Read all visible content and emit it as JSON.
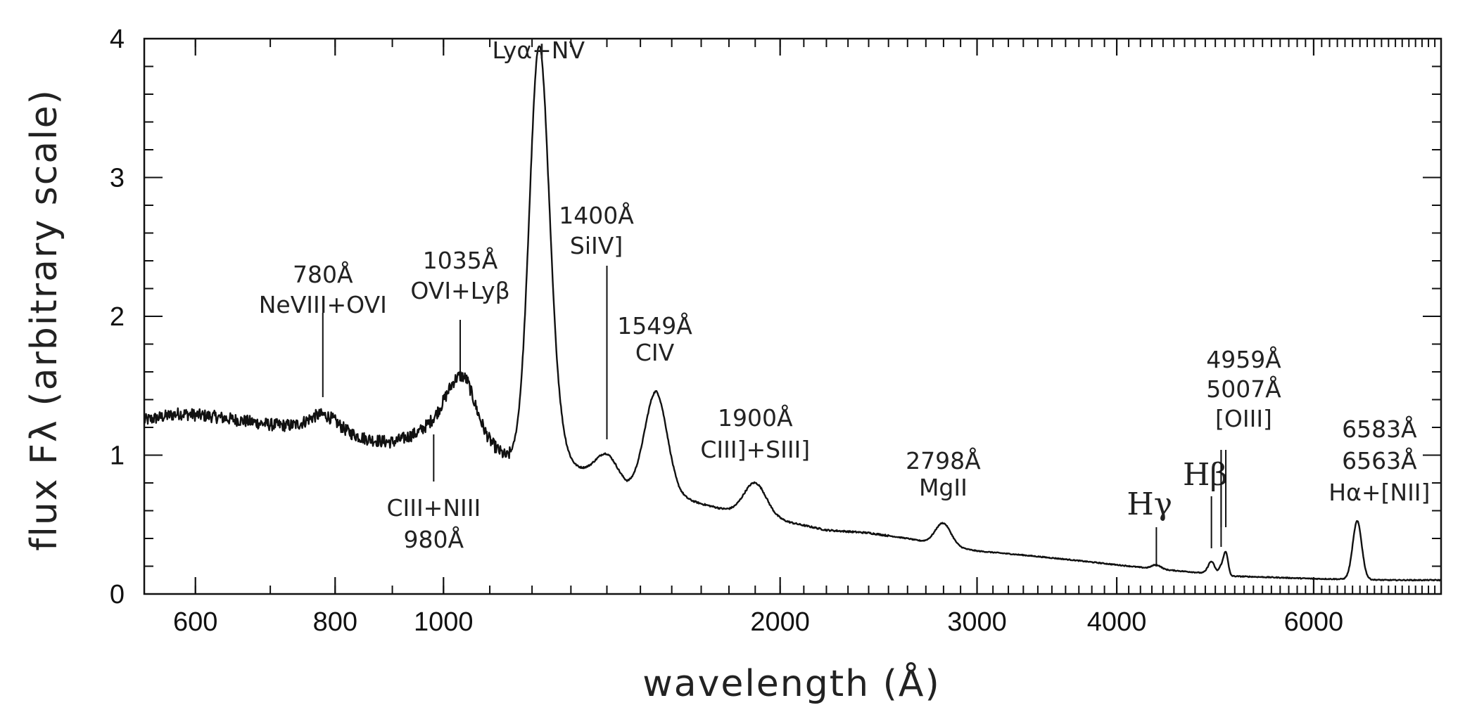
{
  "chart_data": {
    "type": "line",
    "title": "",
    "xlabel": "wavelength (Å)",
    "ylabel": "flux Fλ (arbitrary scale)",
    "x_scale": "log",
    "xlim": [
      540,
      7800
    ],
    "ylim": [
      0,
      4
    ],
    "x_ticks": [
      {
        "value": 600,
        "label": "600"
      },
      {
        "value": 800,
        "label": "800"
      },
      {
        "value": 1000,
        "label": "1000"
      },
      {
        "value": 2000,
        "label": "2000"
      },
      {
        "value": 3000,
        "label": "3000"
      },
      {
        "value": 4000,
        "label": "4000"
      },
      {
        "value": 6000,
        "label": "6000"
      }
    ],
    "y_ticks": [
      {
        "value": 0,
        "label": "0"
      },
      {
        "value": 1,
        "label": "1"
      },
      {
        "value": 2,
        "label": "2"
      },
      {
        "value": 3,
        "label": "3"
      },
      {
        "value": 4,
        "label": "4"
      }
    ],
    "grid": false,
    "series": [
      {
        "color": "#111111",
        "continuum": [
          [
            540,
            1.25
          ],
          [
            580,
            1.3
          ],
          [
            620,
            1.28
          ],
          [
            700,
            1.22
          ],
          [
            760,
            1.2
          ],
          [
            800,
            1.18
          ],
          [
            850,
            1.12
          ],
          [
            900,
            1.08
          ],
          [
            950,
            1.1
          ],
          [
            1000,
            1.18
          ],
          [
            1050,
            1.25
          ],
          [
            1100,
            1.08
          ],
          [
            1140,
            0.98
          ],
          [
            1180,
            1.02
          ],
          [
            1215,
            1.05
          ],
          [
            1260,
            0.95
          ],
          [
            1320,
            0.9
          ],
          [
            1400,
            0.84
          ],
          [
            1460,
            0.76
          ],
          [
            1549,
            0.8
          ],
          [
            1620,
            0.7
          ],
          [
            1700,
            0.65
          ],
          [
            1800,
            0.6
          ],
          [
            1900,
            0.56
          ],
          [
            2000,
            0.53
          ],
          [
            2200,
            0.46
          ],
          [
            2400,
            0.44
          ],
          [
            2600,
            0.4
          ],
          [
            2800,
            0.35
          ],
          [
            3000,
            0.31
          ],
          [
            3300,
            0.28
          ],
          [
            3600,
            0.25
          ],
          [
            4000,
            0.21
          ],
          [
            4340,
            0.18
          ],
          [
            4800,
            0.15
          ],
          [
            5000,
            0.13
          ],
          [
            5500,
            0.12
          ],
          [
            6000,
            0.11
          ],
          [
            6563,
            0.105
          ],
          [
            7000,
            0.1
          ],
          [
            7800,
            0.1
          ]
        ],
        "lines": [
          {
            "center": 780,
            "amp": 0.1,
            "width": 0.012
          },
          {
            "center": 980,
            "amp": 0.08,
            "width": 0.02
          },
          {
            "center": 1035,
            "amp": 0.3,
            "width": 0.012
          },
          {
            "center": 1216,
            "amp": 2.55,
            "width": 0.0085
          },
          {
            "center": 1240,
            "amp": 0.5,
            "width": 0.01
          },
          {
            "center": 1400,
            "amp": 0.17,
            "width": 0.01
          },
          {
            "center": 1549,
            "amp": 0.66,
            "width": 0.01
          },
          {
            "center": 1900,
            "amp": 0.24,
            "width": 0.01
          },
          {
            "center": 2798,
            "amp": 0.16,
            "width": 0.007
          },
          {
            "center": 4340,
            "amp": 0.03,
            "width": 0.004
          },
          {
            "center": 4861,
            "amp": 0.09,
            "width": 0.003
          },
          {
            "center": 4959,
            "amp": 0.06,
            "width": 0.002
          },
          {
            "center": 5007,
            "amp": 0.17,
            "width": 0.002
          },
          {
            "center": 6563,
            "amp": 0.42,
            "width": 0.004
          }
        ]
      }
    ],
    "annotations": [
      {
        "x": 780,
        "lines": [
          "780Å",
          "NeVIII+OVI"
        ],
        "position": "above"
      },
      {
        "x": 1035,
        "lines": [
          "1035Å",
          "OVI+Lyβ"
        ],
        "position": "above"
      },
      {
        "x": 1216,
        "lines": [
          "Lyα+NV"
        ],
        "position": "above"
      },
      {
        "x": 1400,
        "lines": [
          "1400Å",
          "SiIV]"
        ],
        "position": "above"
      },
      {
        "x": 1549,
        "lines": [
          "1549Å",
          "CIV"
        ],
        "position": "above"
      },
      {
        "x": 1900,
        "lines": [
          "1900Å",
          "CIII]+SIII]"
        ],
        "position": "above"
      },
      {
        "x": 2798,
        "lines": [
          "2798Å",
          "MgII"
        ],
        "position": "above"
      },
      {
        "x": 980,
        "lines": [
          "CIII+NIII",
          "980Å"
        ],
        "position": "below"
      },
      {
        "x": 4340,
        "lines": [
          "Hγ"
        ],
        "position": "above"
      },
      {
        "x": 4861,
        "lines": [
          "Hβ"
        ],
        "position": "above"
      },
      {
        "x": 4959,
        "lines": [
          "4959Å",
          "5007Å",
          "[OIII]"
        ],
        "position": "above"
      },
      {
        "x": 6563,
        "lines": [
          "6583Å",
          "6563Å",
          "Hα+[NII]"
        ],
        "position": "above"
      }
    ]
  }
}
